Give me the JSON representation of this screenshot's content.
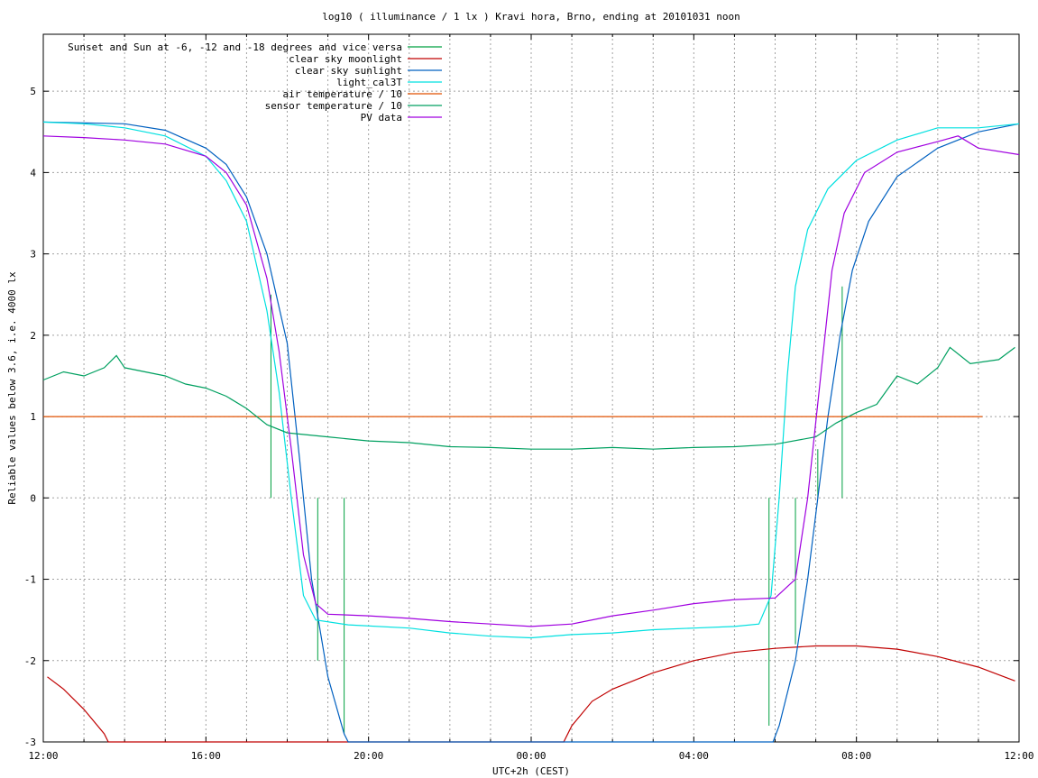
{
  "chart_data": {
    "type": "line",
    "title": "log10 ( illuminance / 1 lx ) Kravi hora, Brno, ending at 20101031 noon",
    "xlabel": "UTC+2h (CEST)",
    "ylabel": "Reliable values below 3.6, i.e. 4000 lx",
    "x_unit": "hours after 12:00 on 2010-10-30",
    "xlim": [
      0,
      24
    ],
    "ylim": [
      -3,
      5.7
    ],
    "x_ticks": [
      {
        "x": 0,
        "label": "12:00"
      },
      {
        "x": 4,
        "label": "16:00"
      },
      {
        "x": 8,
        "label": "20:00"
      },
      {
        "x": 12,
        "label": "00:00"
      },
      {
        "x": 16,
        "label": "04:00"
      },
      {
        "x": 20,
        "label": "08:00"
      },
      {
        "x": 24,
        "label": "12:00"
      }
    ],
    "y_ticks": [
      {
        "y": 5,
        "label": "5"
      },
      {
        "y": 4,
        "label": "4"
      },
      {
        "y": 3,
        "label": "3"
      },
      {
        "y": 2,
        "label": "2"
      },
      {
        "y": 1,
        "label": "1"
      },
      {
        "y": 0,
        "label": "0"
      },
      {
        "y": -1,
        "label": "-1"
      },
      {
        "y": -2,
        "label": "-2"
      },
      {
        "y": -3,
        "label": "-3"
      }
    ],
    "grid": true,
    "legend_position": "top-left",
    "series": [
      {
        "name": "Sunset and Sun at -6, -12 and -18 degrees and vice versa",
        "color": "#00a040",
        "style": "impulses",
        "points": [
          [
            5.6,
            2.5
          ],
          [
            6.75,
            -2.0
          ],
          [
            7.4,
            -2.9
          ],
          [
            17.85,
            -2.8
          ],
          [
            18.5,
            -1.8
          ],
          [
            19.05,
            0.6
          ],
          [
            19.65,
            2.6
          ]
        ]
      },
      {
        "name": "clear sky moonlight",
        "color": "#c00000",
        "style": "line",
        "points": [
          [
            0.1,
            -2.2
          ],
          [
            0.5,
            -2.35
          ],
          [
            1.0,
            -2.6
          ],
          [
            1.5,
            -2.9
          ],
          [
            1.6,
            -3.0
          ],
          [
            12.8,
            -3.0
          ],
          [
            13.0,
            -2.8
          ],
          [
            13.5,
            -2.5
          ],
          [
            14.0,
            -2.35
          ],
          [
            15.0,
            -2.15
          ],
          [
            16.0,
            -2.0
          ],
          [
            17.0,
            -1.9
          ],
          [
            18.0,
            -1.85
          ],
          [
            19.0,
            -1.82
          ],
          [
            20.0,
            -1.82
          ],
          [
            21.0,
            -1.86
          ],
          [
            22.0,
            -1.95
          ],
          [
            23.0,
            -2.08
          ],
          [
            23.9,
            -2.25
          ]
        ]
      },
      {
        "name": "clear sky sunlight",
        "color": "#0060c0",
        "style": "line",
        "points": [
          [
            0,
            4.62
          ],
          [
            2,
            4.6
          ],
          [
            3,
            4.52
          ],
          [
            4,
            4.3
          ],
          [
            4.5,
            4.1
          ],
          [
            5,
            3.7
          ],
          [
            5.5,
            3.0
          ],
          [
            6,
            1.9
          ],
          [
            6.3,
            0.5
          ],
          [
            6.6,
            -1.0
          ],
          [
            7.0,
            -2.2
          ],
          [
            7.4,
            -2.9
          ],
          [
            7.5,
            -3.0
          ],
          [
            17.95,
            -3.0
          ],
          [
            18.1,
            -2.8
          ],
          [
            18.5,
            -2.0
          ],
          [
            18.8,
            -1.0
          ],
          [
            19.0,
            -0.2
          ],
          [
            19.3,
            1.0
          ],
          [
            19.6,
            2.0
          ],
          [
            19.9,
            2.8
          ],
          [
            20.3,
            3.4
          ],
          [
            21,
            3.95
          ],
          [
            22,
            4.3
          ],
          [
            23,
            4.5
          ],
          [
            24,
            4.6
          ]
        ]
      },
      {
        "name": "light_cal3T",
        "color": "#00e0e0",
        "style": "line",
        "points": [
          [
            0,
            4.62
          ],
          [
            1,
            4.6
          ],
          [
            2,
            4.55
          ],
          [
            3,
            4.45
          ],
          [
            4,
            4.2
          ],
          [
            4.5,
            3.9
          ],
          [
            5,
            3.4
          ],
          [
            5.5,
            2.3
          ],
          [
            5.8,
            1.3
          ],
          [
            6.1,
            0.0
          ],
          [
            6.4,
            -1.2
          ],
          [
            6.7,
            -1.5
          ],
          [
            7.5,
            -1.56
          ],
          [
            9,
            -1.6
          ],
          [
            10,
            -1.66
          ],
          [
            11,
            -1.7
          ],
          [
            12,
            -1.72
          ],
          [
            13,
            -1.68
          ],
          [
            14,
            -1.66
          ],
          [
            15,
            -1.62
          ],
          [
            16,
            -1.6
          ],
          [
            17,
            -1.58
          ],
          [
            17.6,
            -1.55
          ],
          [
            17.9,
            -1.2
          ],
          [
            18.1,
            0.0
          ],
          [
            18.3,
            1.5
          ],
          [
            18.5,
            2.6
          ],
          [
            18.8,
            3.3
          ],
          [
            19.3,
            3.8
          ],
          [
            20,
            4.15
          ],
          [
            21,
            4.4
          ],
          [
            22,
            4.55
          ],
          [
            23,
            4.55
          ],
          [
            24,
            4.6
          ]
        ]
      },
      {
        "name": "air temperature / 10",
        "color": "#e05000",
        "style": "line",
        "points": [
          [
            0,
            1.0
          ],
          [
            23.1,
            1.0
          ]
        ]
      },
      {
        "name": "sensor temperature / 10",
        "color": "#00a060",
        "style": "line",
        "points": [
          [
            0,
            1.45
          ],
          [
            0.5,
            1.55
          ],
          [
            1,
            1.5
          ],
          [
            1.5,
            1.6
          ],
          [
            1.8,
            1.75
          ],
          [
            2,
            1.6
          ],
          [
            3,
            1.5
          ],
          [
            3.5,
            1.4
          ],
          [
            4,
            1.35
          ],
          [
            4.5,
            1.25
          ],
          [
            5,
            1.1
          ],
          [
            5.5,
            0.9
          ],
          [
            6,
            0.8
          ],
          [
            7,
            0.75
          ],
          [
            8,
            0.7
          ],
          [
            9,
            0.68
          ],
          [
            10,
            0.63
          ],
          [
            11,
            0.62
          ],
          [
            12,
            0.6
          ],
          [
            13,
            0.6
          ],
          [
            14,
            0.62
          ],
          [
            15,
            0.6
          ],
          [
            16,
            0.62
          ],
          [
            17,
            0.63
          ],
          [
            18,
            0.66
          ],
          [
            19,
            0.75
          ],
          [
            19.5,
            0.92
          ],
          [
            20,
            1.05
          ],
          [
            20.5,
            1.15
          ],
          [
            21,
            1.5
          ],
          [
            21.5,
            1.4
          ],
          [
            22,
            1.6
          ],
          [
            22.3,
            1.85
          ],
          [
            22.8,
            1.65
          ],
          [
            23.5,
            1.7
          ],
          [
            23.9,
            1.85
          ]
        ]
      },
      {
        "name": "PV data",
        "color": "#a000e0",
        "style": "line",
        "points": [
          [
            0,
            4.45
          ],
          [
            1,
            4.43
          ],
          [
            2,
            4.4
          ],
          [
            3,
            4.35
          ],
          [
            4,
            4.2
          ],
          [
            4.5,
            4.0
          ],
          [
            5,
            3.6
          ],
          [
            5.5,
            2.7
          ],
          [
            5.8,
            1.8
          ],
          [
            6.1,
            0.6
          ],
          [
            6.4,
            -0.7
          ],
          [
            6.7,
            -1.3
          ],
          [
            7,
            -1.43
          ],
          [
            8,
            -1.45
          ],
          [
            9,
            -1.48
          ],
          [
            10,
            -1.52
          ],
          [
            11,
            -1.55
          ],
          [
            12,
            -1.58
          ],
          [
            13,
            -1.55
          ],
          [
            14,
            -1.45
          ],
          [
            15,
            -1.38
          ],
          [
            16,
            -1.3
          ],
          [
            17,
            -1.25
          ],
          [
            18,
            -1.23
          ],
          [
            18.5,
            -1.0
          ],
          [
            18.8,
            0.0
          ],
          [
            19.1,
            1.4
          ],
          [
            19.4,
            2.8
          ],
          [
            19.7,
            3.5
          ],
          [
            20.2,
            4.0
          ],
          [
            21,
            4.25
          ],
          [
            22,
            4.38
          ],
          [
            22.5,
            4.45
          ],
          [
            23,
            4.3
          ],
          [
            24,
            4.22
          ]
        ]
      }
    ]
  }
}
